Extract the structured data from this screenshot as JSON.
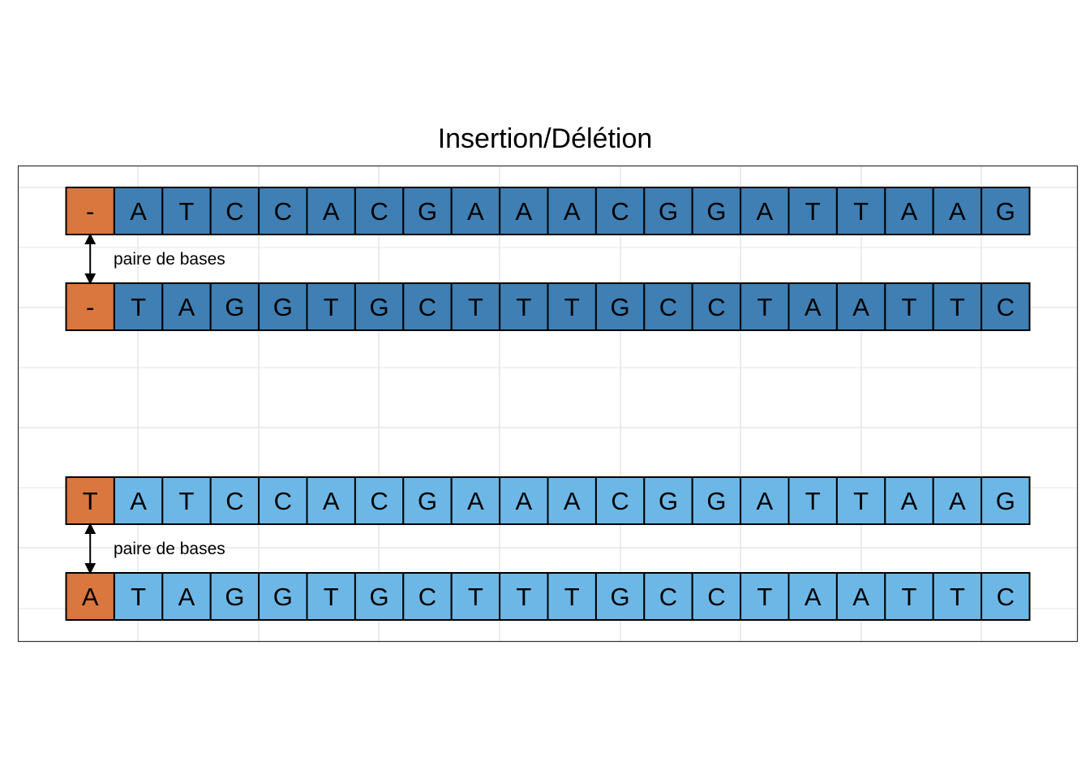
{
  "title": "Insertion/Délétion",
  "colors": {
    "indel_cell": "#D9773F",
    "group1_cell": "#3F7FB3",
    "group2_cell": "#6DB7E6",
    "grid": "#E5E5E5",
    "panel_border": "#333333",
    "cell_border": "#000000"
  },
  "groups": [
    {
      "name": "deletion",
      "strand_top": {
        "first": "-",
        "bases": [
          "A",
          "T",
          "C",
          "C",
          "A",
          "C",
          "G",
          "A",
          "A",
          "A",
          "C",
          "G",
          "G",
          "A",
          "T",
          "T",
          "A",
          "A",
          "G"
        ]
      },
      "strand_bottom": {
        "first": "-",
        "bases": [
          "T",
          "A",
          "G",
          "G",
          "T",
          "G",
          "C",
          "T",
          "T",
          "T",
          "G",
          "C",
          "C",
          "T",
          "A",
          "A",
          "T",
          "T",
          "C"
        ]
      },
      "pair_label": "paire de bases"
    },
    {
      "name": "insertion",
      "strand_top": {
        "first": "T",
        "bases": [
          "A",
          "T",
          "C",
          "C",
          "A",
          "C",
          "G",
          "A",
          "A",
          "A",
          "C",
          "G",
          "G",
          "A",
          "T",
          "T",
          "A",
          "A",
          "G"
        ]
      },
      "strand_bottom": {
        "first": "A",
        "bases": [
          "T",
          "A",
          "G",
          "G",
          "T",
          "G",
          "C",
          "T",
          "T",
          "T",
          "G",
          "C",
          "C",
          "T",
          "A",
          "A",
          "T",
          "T",
          "C"
        ]
      },
      "pair_label": "paire de bases"
    }
  ]
}
